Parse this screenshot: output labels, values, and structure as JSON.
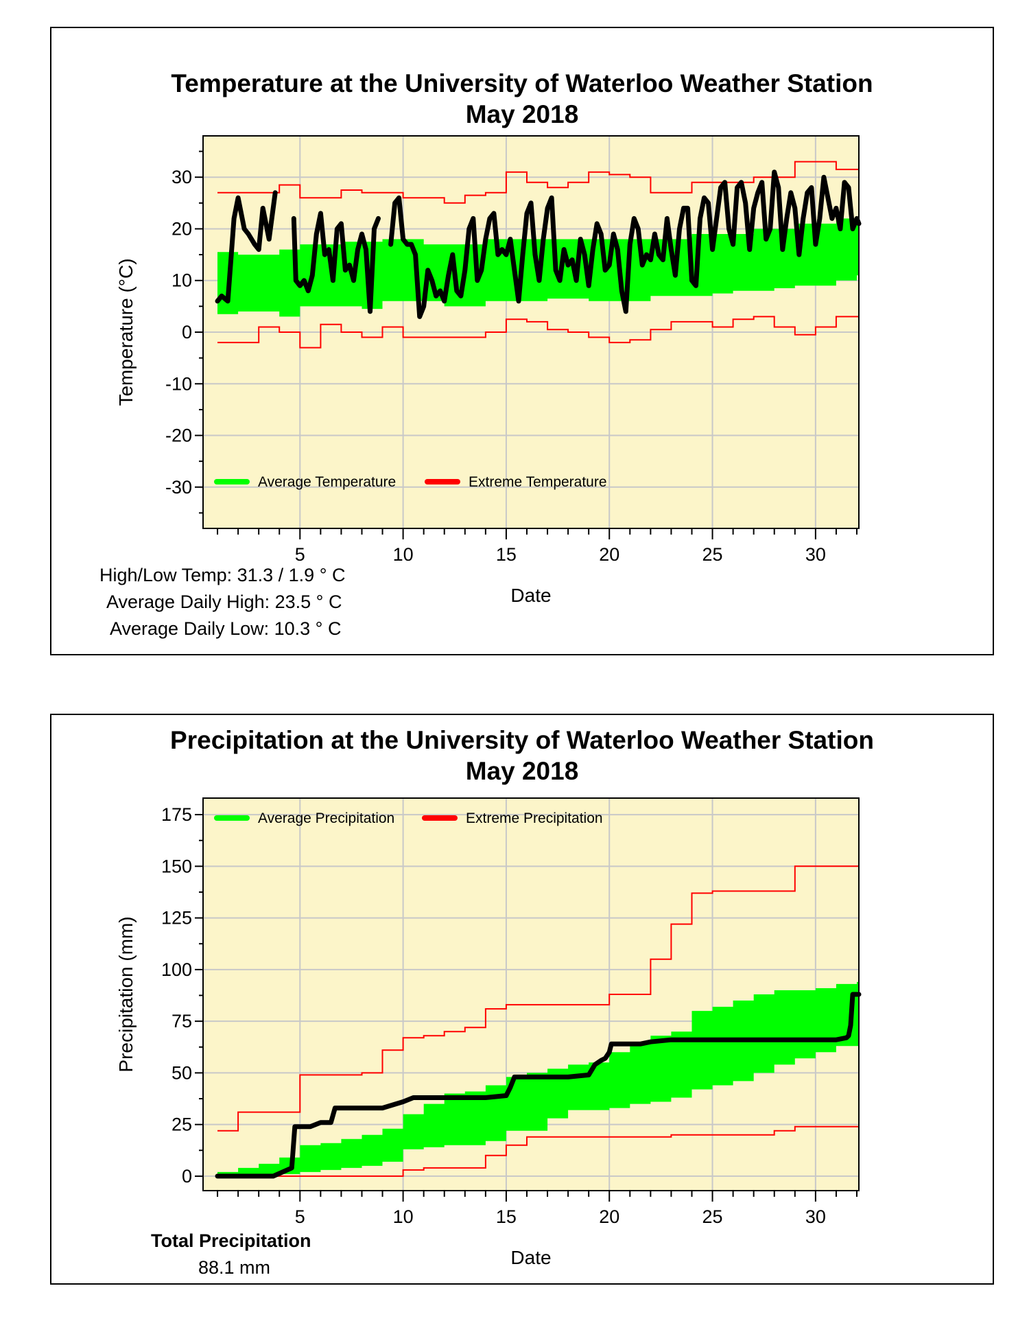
{
  "colors": {
    "plot_bg": "#fcf5c9",
    "grid": "#c8c8c8",
    "average": "#00ff00",
    "extreme": "#ff0000",
    "observed": "#000000"
  },
  "temperature": {
    "title_line1": "Temperature at the University of Waterloo Weather Station",
    "title_line2": "May 2018",
    "stats": {
      "high_low": "High/Low Temp:  31.3 / 1.9 ° C",
      "avg_high": "Average Daily High:  23.5 ° C",
      "avg_low": "Average Daily Low:  10.3 ° C"
    }
  },
  "precipitation": {
    "title_line1": "Precipitation at the University of Waterloo Weather Station",
    "title_line2": "May 2018",
    "total_label": "Total Precipitation",
    "total_value": "88.1 mm"
  },
  "chart_data": [
    {
      "type": "line",
      "title": "Temperature at the University of Waterloo Weather Station May 2018",
      "xlabel": "Date",
      "ylabel": "Temperature (°C)",
      "xlim": [
        0.3,
        32.1
      ],
      "ylim": [
        -38,
        38
      ],
      "xticks": [
        5,
        10,
        15,
        20,
        25,
        30
      ],
      "yticks": [
        -30,
        -20,
        -10,
        0,
        10,
        20,
        30
      ],
      "grid": true,
      "legend": {
        "position": "bottom-left",
        "entries": [
          "Average Temperature",
          "Extreme Temperature"
        ]
      },
      "average_band": {
        "name": "Average Temperature",
        "days": [
          1,
          2,
          3,
          4,
          5,
          6,
          7,
          8,
          9,
          10,
          11,
          12,
          13,
          14,
          15,
          16,
          17,
          18,
          19,
          20,
          21,
          22,
          23,
          24,
          25,
          26,
          27,
          28,
          29,
          30,
          31,
          32
        ],
        "low": [
          3.5,
          4,
          4,
          3,
          5,
          5,
          5,
          4.5,
          6,
          6,
          6,
          5,
          5,
          6,
          6,
          6,
          6.5,
          6.5,
          6,
          6,
          6,
          7,
          7,
          7,
          7.5,
          8,
          8,
          8.5,
          9,
          9,
          10,
          11
        ],
        "high": [
          15.5,
          15,
          15,
          16,
          17,
          17,
          17.5,
          17.5,
          18,
          18,
          17,
          17,
          17,
          18,
          18,
          18,
          18,
          18,
          18,
          18,
          18,
          18,
          18,
          19,
          19,
          19,
          20,
          20,
          21,
          21,
          22,
          22
        ]
      },
      "extreme_series": [
        {
          "name": "Extreme High",
          "days": [
            1,
            2,
            3,
            4,
            5,
            6,
            7,
            8,
            9,
            10,
            11,
            12,
            13,
            14,
            15,
            16,
            17,
            18,
            19,
            20,
            21,
            22,
            23,
            24,
            25,
            26,
            27,
            28,
            29,
            30,
            31,
            32
          ],
          "values": [
            27,
            27,
            27,
            28.5,
            26,
            26,
            27.5,
            27,
            27,
            26,
            26,
            25,
            26.5,
            27,
            31,
            29,
            28,
            29,
            31,
            30.5,
            30,
            27,
            27,
            29,
            29,
            29,
            30,
            30,
            33,
            33,
            31.5,
            31.5
          ]
        },
        {
          "name": "Extreme Low",
          "days": [
            1,
            2,
            3,
            4,
            5,
            6,
            7,
            8,
            9,
            10,
            11,
            12,
            13,
            14,
            15,
            16,
            17,
            18,
            19,
            20,
            21,
            22,
            23,
            24,
            25,
            26,
            27,
            28,
            29,
            30,
            31,
            32
          ],
          "values": [
            -2,
            -2,
            1,
            0,
            -3,
            1.5,
            0,
            -1,
            1,
            -1,
            -1,
            -1,
            -1,
            0,
            2.5,
            2,
            0.5,
            0,
            -1,
            -2,
            -1.5,
            0.5,
            2,
            2,
            1,
            2.5,
            3,
            1,
            -0.5,
            1,
            3,
            3
          ]
        }
      ],
      "observed": [
        {
          "name": "Observed Temperature",
          "days": [
            1,
            1.2,
            1.5,
            1.8,
            2,
            2.3,
            2.5,
            2.8,
            3,
            3.2,
            3.5,
            3.8
          ],
          "values": [
            6,
            7,
            6,
            22,
            26,
            20,
            19,
            17,
            16,
            24,
            18,
            27
          ]
        },
        {
          "name": "Observed Temperature",
          "days": [
            4.7,
            4.8,
            5,
            5.2,
            5.4,
            5.6,
            5.8,
            6,
            6.2,
            6.4,
            6.6,
            6.8,
            7,
            7.2,
            7.4,
            7.6,
            7.8,
            8,
            8.2,
            8.4,
            8.6,
            8.8
          ],
          "values": [
            22,
            10,
            9,
            10,
            8,
            11,
            19,
            23,
            15,
            16,
            10,
            20,
            21,
            12,
            13,
            10,
            16,
            19,
            16,
            4,
            20,
            22
          ]
        },
        {
          "name": "Observed Temperature",
          "days": [
            9.4,
            9.6,
            9.8,
            10,
            10.2,
            10.4,
            10.6,
            10.8,
            11,
            11.2,
            11.4,
            11.6,
            11.8,
            12,
            12.2,
            12.4,
            12.6,
            12.8,
            13,
            13.2,
            13.4,
            13.6,
            13.8,
            14,
            14.2,
            14.4,
            14.6,
            14.8,
            15,
            15.2,
            15.4,
            15.6,
            15.8,
            16,
            16.2,
            16.4,
            16.6,
            16.8,
            17,
            17.2,
            17.4,
            17.6,
            17.8,
            18,
            18.2,
            18.4,
            18.6,
            18.8,
            19,
            19.2,
            19.4,
            19.6,
            19.8,
            20,
            20.2,
            20.4,
            20.6,
            20.8,
            21,
            21.2,
            21.4,
            21.6,
            21.8,
            22,
            22.2,
            22.4,
            22.6,
            22.8,
            23,
            23.2,
            23.4,
            23.6,
            23.8,
            24,
            24.2,
            24.4,
            24.6,
            24.8,
            25,
            25.2,
            25.4,
            25.6,
            25.8,
            26,
            26.2,
            26.4,
            26.6,
            26.8,
            27,
            27.2,
            27.4,
            27.6,
            27.8,
            28,
            28.2,
            28.4,
            28.6,
            28.8,
            29,
            29.2,
            29.4,
            29.6,
            29.8,
            30,
            30.2,
            30.4,
            30.6,
            30.8,
            31,
            31.2,
            31.4,
            31.6,
            31.8,
            32,
            32.1
          ],
          "values": [
            17,
            25,
            26,
            18,
            17,
            17,
            15,
            3,
            5,
            12,
            10,
            7,
            8,
            6,
            11,
            15,
            8,
            7,
            12,
            20,
            22,
            10,
            12,
            18,
            22,
            23,
            15,
            16,
            15,
            18,
            12,
            6,
            15,
            23,
            25,
            15,
            10,
            18,
            24,
            26,
            12,
            10,
            16,
            13,
            14,
            10,
            18,
            15,
            9,
            16,
            21,
            19,
            12,
            13,
            19,
            16,
            8,
            4,
            17,
            22,
            20,
            13,
            15,
            14,
            19,
            15,
            14,
            22,
            16,
            11,
            20,
            24,
            24,
            10,
            9,
            22,
            26,
            25,
            16,
            22,
            28,
            29,
            20,
            17,
            28,
            29,
            25,
            16,
            24,
            27,
            29,
            18,
            20,
            31,
            28,
            16,
            22,
            27,
            24,
            15,
            22,
            27,
            28,
            17,
            22,
            30,
            26,
            22,
            24,
            20,
            29,
            28,
            20,
            22,
            21
          ]
        }
      ]
    },
    {
      "type": "line",
      "title": "Precipitation at the University of Waterloo Weather Station May 2018",
      "xlabel": "Date",
      "ylabel": "Precipitation (mm)",
      "xlim": [
        0.3,
        32.1
      ],
      "ylim": [
        -7,
        183
      ],
      "xticks": [
        5,
        10,
        15,
        20,
        25,
        30
      ],
      "yticks": [
        0,
        25,
        50,
        75,
        100,
        125,
        150,
        175
      ],
      "grid": true,
      "legend": {
        "position": "top-left",
        "entries": [
          "Average Precipitation",
          "Extreme Precipitation"
        ]
      },
      "average_band": {
        "name": "Average Precipitation",
        "days": [
          1,
          2,
          3,
          4,
          5,
          6,
          7,
          8,
          9,
          10,
          11,
          12,
          13,
          14,
          15,
          16,
          17,
          18,
          19,
          20,
          21,
          22,
          23,
          24,
          25,
          26,
          27,
          28,
          29,
          30,
          31,
          32
        ],
        "low": [
          0,
          0,
          0,
          1,
          2,
          3,
          4,
          5,
          7,
          13,
          14,
          15,
          15,
          17,
          22,
          22,
          28,
          32,
          32,
          33,
          35,
          36,
          38,
          42,
          44,
          46,
          50,
          54,
          57,
          60,
          63,
          63
        ],
        "high": [
          2,
          4,
          6,
          9,
          15,
          16,
          18,
          20,
          23,
          30,
          35,
          40,
          41,
          44,
          48,
          50,
          52,
          54,
          55,
          60,
          65,
          68,
          70,
          80,
          82,
          85,
          88,
          90,
          90,
          91,
          93,
          94
        ]
      },
      "extreme_series": [
        {
          "name": "Extreme High",
          "days": [
            1,
            2,
            3,
            4,
            5,
            6,
            7,
            8,
            9,
            10,
            11,
            12,
            13,
            14,
            15,
            16,
            17,
            18,
            19,
            20,
            21,
            22,
            23,
            24,
            25,
            26,
            27,
            28,
            29,
            30,
            31,
            32
          ],
          "values": [
            22,
            31,
            31,
            31,
            49,
            49,
            49,
            50,
            61,
            67,
            68,
            70,
            72,
            81,
            83,
            83,
            83,
            83,
            83,
            88,
            88,
            105,
            122,
            137,
            138,
            138,
            138,
            138,
            150,
            150,
            150,
            150
          ]
        },
        {
          "name": "Extreme Low",
          "days": [
            1,
            2,
            3,
            4,
            5,
            6,
            7,
            8,
            9,
            10,
            11,
            12,
            13,
            14,
            15,
            16,
            17,
            18,
            19,
            20,
            21,
            22,
            23,
            24,
            25,
            26,
            27,
            28,
            29,
            30,
            31,
            32
          ],
          "values": [
            0,
            0,
            0,
            0,
            0,
            0,
            0,
            0,
            0,
            3,
            4,
            4,
            4,
            10,
            15,
            19,
            19,
            19,
            19,
            19,
            19,
            19,
            20,
            20,
            20,
            20,
            20,
            22,
            24,
            24,
            24,
            24
          ]
        }
      ],
      "observed": [
        {
          "name": "Observed Precipitation",
          "days": [
            1,
            1.5,
            2.5,
            3.7,
            4.6,
            4.75,
            5.5,
            6,
            6.5,
            6.7,
            8,
            9,
            10,
            10.5,
            12,
            14,
            15,
            15.2,
            15.4,
            17,
            18,
            19,
            19.3,
            19.6,
            19.8,
            20,
            20.1,
            20.8,
            21.5,
            22,
            23,
            25,
            28,
            30,
            31,
            31.5,
            31.6,
            31.7,
            31.8,
            32,
            32.1
          ],
          "values": [
            0,
            0,
            0,
            0,
            4,
            24,
            24,
            26,
            26,
            33,
            33,
            33,
            36,
            38,
            38,
            38,
            39,
            43,
            48,
            48,
            48,
            49,
            54,
            56,
            57,
            60,
            64,
            64,
            64,
            65,
            66,
            66,
            66,
            66,
            66,
            67,
            68,
            73,
            88,
            88,
            88
          ]
        }
      ]
    }
  ]
}
